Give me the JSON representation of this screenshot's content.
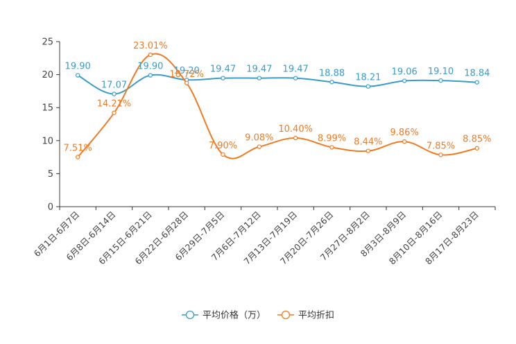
{
  "chart_data": {
    "type": "line",
    "title": "",
    "xlabel": "",
    "ylabel": "",
    "ylim": [
      0,
      25
    ],
    "yticks": [
      0,
      5,
      10,
      15,
      20,
      25
    ],
    "categories": [
      "6月1日-6月7日",
      "6月8日-6月14日",
      "6月15日-6月21日",
      "6月22日-6月28日",
      "6月29日-7月5日",
      "7月6日-7月12日",
      "7月13日-7月19日",
      "7月20日-7月26日",
      "7月27日-8月2日",
      "8月3日-8月9日",
      "8月10日-8月16日",
      "8月17日-8月23日"
    ],
    "legend_position": "bottom",
    "series": [
      {
        "name": "平均价格（万）",
        "color": "#3a9bc8",
        "values": [
          19.9,
          17.07,
          19.9,
          19.2,
          19.47,
          19.47,
          19.47,
          18.88,
          18.21,
          19.06,
          19.1,
          18.84
        ],
        "labels": [
          "19.90",
          "17.07",
          "19.90",
          "19.20",
          "19.47",
          "19.47",
          "19.47",
          "18.88",
          "18.21",
          "19.06",
          "19.10",
          "18.84"
        ]
      },
      {
        "name": "平均折扣",
        "color": "#f07a22",
        "values": [
          7.51,
          14.21,
          23.01,
          18.72,
          7.9,
          9.08,
          10.4,
          8.99,
          8.44,
          9.86,
          7.85,
          8.85
        ],
        "labels": [
          "7.51%",
          "14.21%",
          "23.01%",
          "18.72%",
          "7.90%",
          "9.08%",
          "10.40%",
          "8.99%",
          "8.44%",
          "9.86%",
          "7.85%",
          "8.85%"
        ]
      }
    ]
  }
}
